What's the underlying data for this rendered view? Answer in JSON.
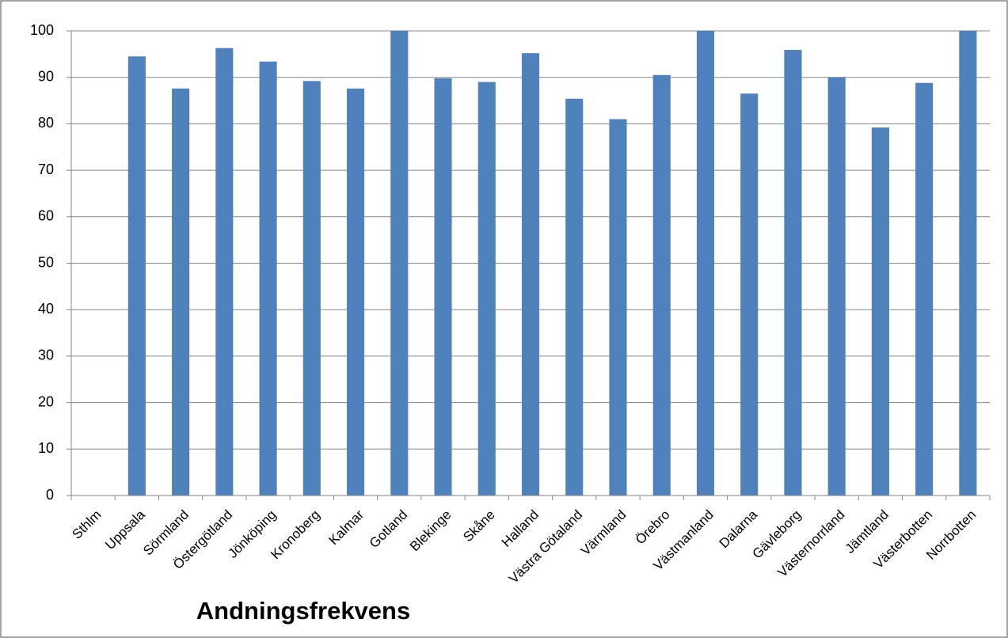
{
  "chart_data": {
    "type": "bar",
    "title": "Andningsfrekvens",
    "categories": [
      "Sthlm",
      "Uppsala",
      "Sörmland",
      "Östergötland",
      "Jönköping",
      "Kronoberg",
      "Kalmar",
      "Gotland",
      "Blekinge",
      "Skåne",
      "Halland",
      "Västra Götaland",
      "Värmland",
      "Örebro",
      "Västmanland",
      "Dalarna",
      "Gävleborg",
      "Västernorrland",
      "Jämtland",
      "Västerbotten",
      "Norrbotten"
    ],
    "values": [
      null,
      94.5,
      87.6,
      96.3,
      93.4,
      89.2,
      87.6,
      100,
      89.8,
      89,
      95.2,
      85.4,
      81,
      90.5,
      100,
      86.5,
      95.9,
      90,
      79.2,
      88.8,
      100
    ],
    "color": "#4f81bd",
    "ylim": [
      0,
      100
    ],
    "yticks": [
      0,
      10,
      20,
      30,
      40,
      50,
      60,
      70,
      80,
      90,
      100
    ],
    "grid": true
  }
}
